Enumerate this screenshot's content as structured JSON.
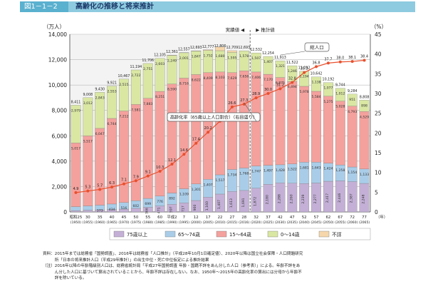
{
  "figure": {
    "number": "図1－1－2",
    "title": "高齢化の推移と将来推計"
  },
  "chart_data": {
    "type": "bar",
    "left_unit": "（万人）",
    "right_unit": "（%）",
    "y_ticks": [
      "0",
      "2,000",
      "4,000",
      "6,000",
      "8,000",
      "10,000",
      "12,000",
      "14,000"
    ],
    "y2_ticks": [
      "0",
      "5",
      "10",
      "15",
      "20",
      "25",
      "30",
      "35",
      "40",
      "45"
    ],
    "ylim": [
      0,
      14000
    ],
    "y2lim": [
      0,
      45
    ],
    "x_top": [
      "昭和25",
      "30",
      "35",
      "40",
      "45",
      "50",
      "55",
      "60",
      "平成2",
      "7",
      "12",
      "17",
      "22",
      "27",
      "28",
      "32",
      "37",
      "42",
      "47",
      "52",
      "57",
      "62",
      "67",
      "72",
      "77"
    ],
    "x_bottom": [
      "(1950)",
      "(1955)",
      "(1960)",
      "(1965)",
      "(1970)",
      "(1975)",
      "(1980)",
      "(1985)",
      "(1990)",
      "(1995)",
      "(2000)",
      "(2005)",
      "(2010)",
      "(2015)",
      "(2016)",
      "(2020)",
      "(2025)",
      "(2030)",
      "(2035)",
      "(2040)",
      "(2045)",
      "(2050)",
      "(2055)",
      "(2060)",
      "(2065)"
    ],
    "x_unit": "（年）",
    "totals": [
      "8,411",
      "9,008",
      "9,430",
      "9,921",
      "10,467",
      "11,194",
      "11,706",
      "12,105",
      "12,361",
      "12,557",
      "12,693",
      "12,777",
      "12,806",
      "12,709",
      "12,693",
      "12,532",
      "12,254",
      "11,913",
      "11,522",
      "11,092",
      "10,642",
      "10,192",
      "9,744",
      "9,284",
      "8,808"
    ],
    "total_values": [
      8411,
      9008,
      9430,
      9921,
      10467,
      11194,
      11706,
      12105,
      12361,
      12557,
      12693,
      12777,
      12806,
      12709,
      12693,
      12532,
      12254,
      11913,
      11522,
      11092,
      10642,
      10192,
      9744,
      9284,
      8808
    ],
    "series": [
      {
        "name": "75歳以上",
        "color": "#c4b0d6",
        "values": [
          107,
          139,
          163,
          189,
          224,
          284,
          366,
          471,
          597,
          717,
          900,
          1160,
          1407,
          1613,
          1691,
          1872,
          2180,
          2288,
          2260,
          2239,
          2277,
          2417,
          2446,
          2387,
          2248
        ],
        "labels": [
          "107",
          "139",
          "163",
          "189",
          "224",
          "284",
          "366",
          "471",
          "597",
          "717",
          "900",
          "1,160",
          "1,407",
          "1,613",
          "1,691",
          "1,872",
          "2,180",
          "2,288",
          "2,260",
          "2,239",
          "2,277",
          "2,417",
          "2,446",
          "2,387",
          "2,248"
        ]
      },
      {
        "name": "65～74歳",
        "color": "#a9cde9",
        "values": [
          309,
          336,
          373,
          434,
          516,
          602,
          699,
          776,
          892,
          1109,
          1301,
          1407,
          1517,
          1734,
          1768,
          1747,
          1497,
          1428,
          1522,
          1681,
          1643,
          1424,
          1258,
          1154,
          1133
        ],
        "labels": [
          "309",
          "336",
          "373",
          "434",
          "516",
          "602",
          "699",
          "776",
          "892",
          "1,109",
          "1,301",
          "1,407",
          "1,517",
          "1,734",
          "1,768",
          "1,747",
          "1,497",
          "1,428",
          "1,522",
          "1,681",
          "1,643",
          "1,424",
          "1,258",
          "1,154",
          "1,133"
        ]
      },
      {
        "name": "15～64歳",
        "color": "#f4a19d",
        "values": [
          5017,
          5517,
          6047,
          6744,
          7212,
          7581,
          7883,
          8251,
          8590,
          8716,
          8622,
          8409,
          8103,
          7629,
          7656,
          7406,
          7170,
          6875,
          6494,
          5978,
          5584,
          5275,
          5028,
          4793,
          4529
        ],
        "labels": [
          "5,017",
          "5,517",
          "6,047",
          "6,744",
          "7,212",
          "7,581",
          "7,883",
          "8,251",
          "8,590",
          "8,716",
          "8,622",
          "8,409",
          "8,103",
          "7,629",
          "7,656",
          "7,406",
          "7,170",
          "6,875",
          "6,494",
          "5,978",
          "5,584",
          "5,275",
          "5,028",
          "4,793",
          "4,529"
        ]
      },
      {
        "name": "0～14歳",
        "color": "#d9e7a3",
        "values": [
          2979,
          3012,
          2843,
          2553,
          2515,
          2722,
          2751,
          2603,
          2249,
          2001,
          1847,
          1752,
          1680,
          1595,
          1578,
          1507,
          1407,
          1321,
          1246,
          1194,
          1138,
          1077,
          1012,
          951,
          898
        ],
        "labels": [
          "2,979",
          "3,012",
          "2,843",
          "2,553",
          "2,515",
          "2,722",
          "2,751",
          "2,603",
          "2,249",
          "2,001",
          "1,847",
          "1,752",
          "1,680",
          "1,595",
          "1,578",
          "1,507",
          "1,407",
          "1,321",
          "1,246",
          "1,194",
          "1,138",
          "1,077",
          "1,012",
          "951",
          "898"
        ]
      },
      {
        "name": "不詳",
        "color": "#f6d7ab",
        "values": [
          0,
          0,
          0,
          0,
          0,
          0,
          0,
          0,
          33,
          14,
          23,
          49,
          298,
          138,
          0,
          0,
          0,
          0,
          0,
          0,
          0,
          0,
          0,
          0,
          0
        ],
        "labels": [
          "",
          "",
          "",
          "",
          "",
          "",
          "",
          "",
          "",
          "",
          "",
          "",
          "",
          "",
          "",
          "",
          "",
          "",
          "",
          "",
          "",
          "",
          "",
          "",
          ""
        ]
      }
    ],
    "aging_rate": {
      "name": "高齢化率（65歳以上人口割合）（右目盛り）",
      "color": "#e8502e",
      "values": [
        4.9,
        5.3,
        5.7,
        6.3,
        7.1,
        7.9,
        9.1,
        10.3,
        12.1,
        14.6,
        17.4,
        20.2,
        23.0,
        26.6,
        27.3,
        28.9,
        30.0,
        31.2,
        32.8,
        35.3,
        36.8,
        37.7,
        38.0,
        38.1,
        38.4
      ],
      "labels": [
        "4.9",
        "5.3",
        "5.7",
        "6.3",
        "7.1",
        "7.9",
        "9.1",
        "10.3",
        "12.1",
        "14.6",
        "17.4",
        "20.2",
        "23.0",
        "26.6",
        "27.3",
        "28.9",
        "30.0",
        "31.2",
        "32.8",
        "35.3",
        "36.8",
        "37.7",
        "38.0",
        "38.1",
        "38.4"
      ]
    },
    "annotations": {
      "actual": "実績値",
      "estimate": "推計値",
      "total_population": "総人口",
      "rate_box": "高齢化率（65歳以上人口割合）（右目盛り）"
    },
    "legend": [
      "75歳以上",
      "65～74歳",
      "15～64歳",
      "0～14歳",
      "不詳"
    ]
  },
  "notes": [
    "資料：2015年までは総務省「国勢調査」、2016年は総務省「人口推計」（平成28年10月1日確定値）、2020年以降は国立社会保障・人口問題研究",
    "　　　所「日本の将来推計人口（平成29年推計）」の出生中位・死亡中位仮定による推計結果",
    "（注）2016年以降の年齢階級別人口は、総務省統計局「平成27年国勢調査 年齢・国籍不詳をあん分した人口（参考表）」による。年齢不詳をあ",
    "　　　ん分した人口に基づいて算出されていることから、年齢不詳は存在しない。なお、1950年～2015年の高齢化率の算出には分母から年齢不",
    "　　　詳を除いている。"
  ],
  "colors": {
    "header_bar": "#8ecbe0",
    "header_tab": "#5ab0cf",
    "grid": "#b0b0b0",
    "actual_bg": "#f3f3f3"
  }
}
